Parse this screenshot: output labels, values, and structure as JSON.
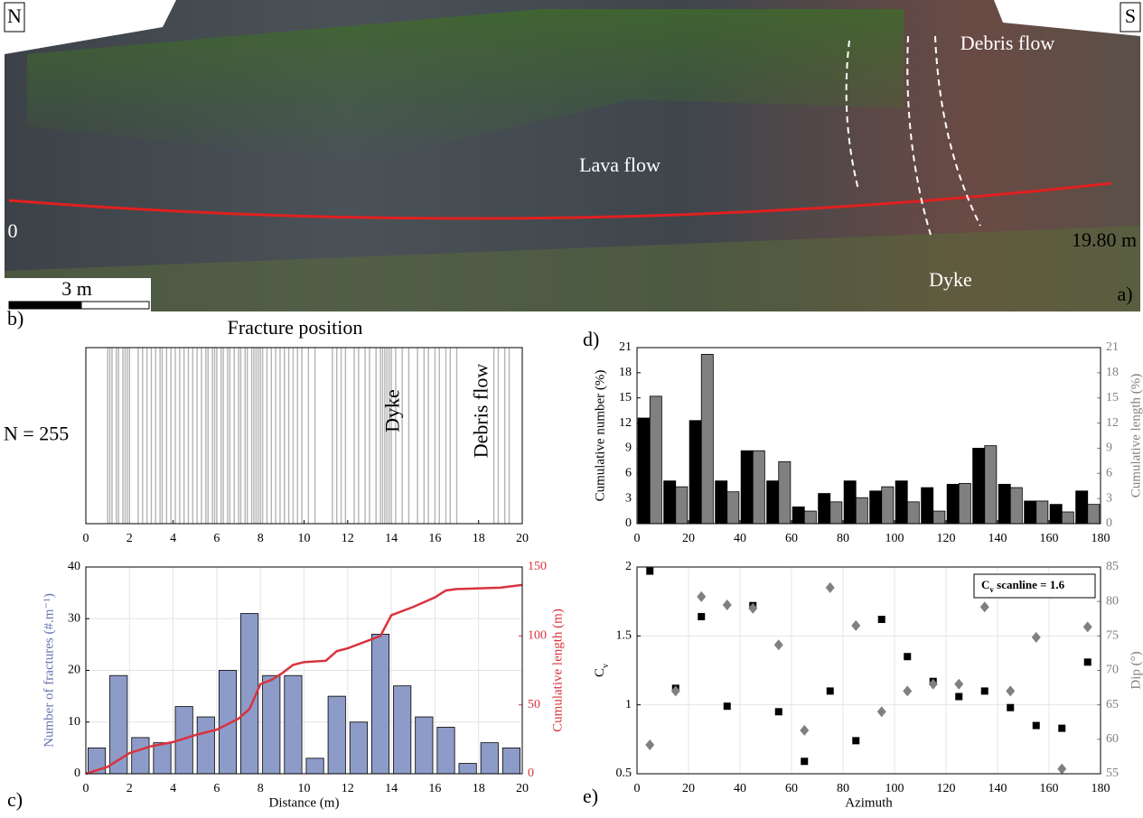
{
  "photo": {
    "north": "N",
    "south": "S",
    "debris_label": "Debris flow",
    "lava_label": "Lava flow",
    "start_label": "0",
    "end_label": "19.80 m",
    "dyke_label": "Dyke",
    "scale_label": "3 m",
    "panel": "a)"
  },
  "chart_data": [
    {
      "type": "rug",
      "panel": "b)",
      "title": "Fracture position",
      "annotation": "N = 255",
      "labels": [
        "Dyke",
        "Debris flow"
      ],
      "color": "#b4b4b4",
      "x": [
        1.0,
        1.1,
        1.2,
        1.4,
        1.5,
        1.7,
        1.8,
        1.9,
        2.0,
        2.4,
        2.6,
        2.8,
        3.0,
        3.2,
        3.4,
        3.5,
        3.7,
        3.9,
        4.1,
        4.3,
        4.5,
        4.7,
        4.9,
        5.1,
        5.3,
        5.5,
        5.6,
        5.8,
        5.9,
        6.0,
        6.2,
        6.3,
        6.5,
        6.6,
        6.8,
        7.0,
        7.1,
        7.3,
        7.4,
        7.6,
        7.7,
        7.8,
        7.9,
        8.0,
        8.1,
        8.3,
        8.5,
        8.7,
        8.9,
        9.1,
        9.3,
        9.5,
        9.7,
        9.9,
        10.2,
        10.5,
        11.3,
        11.5,
        11.7,
        11.9,
        12.3,
        12.5,
        12.8,
        13.0,
        13.3,
        13.5,
        13.6,
        13.7,
        13.8,
        13.9,
        14.0,
        14.2,
        14.5,
        14.8,
        15.2,
        15.5,
        15.7,
        16.0,
        16.2,
        16.5,
        16.7,
        17.0,
        18.7,
        18.9,
        19.2,
        19.4
      ],
      "xlim": [
        0,
        20
      ],
      "xticks": [
        0,
        2,
        4,
        6,
        8,
        10,
        12,
        14,
        16,
        18,
        20
      ]
    },
    {
      "type": "bar",
      "panel": "c)",
      "xlabel": "Distance (m)",
      "ylabel": "Number of fractures (#.m⁻¹)",
      "y2label": "Cumulative length (m)",
      "ylabel_color": "#6673b0",
      "y2label_color": "#d9333f",
      "grid": true,
      "x": [
        0.5,
        1.5,
        2.5,
        3.5,
        4.5,
        5.5,
        6.5,
        7.5,
        8.5,
        9.5,
        10.5,
        11.5,
        12.5,
        13.5,
        14.5,
        15.5,
        16.5,
        17.5,
        18.5,
        19.5
      ],
      "series": [
        {
          "type": "bar",
          "color": "#8d9bc8",
          "values": [
            5,
            19,
            7,
            6,
            13,
            11,
            20,
            31,
            19,
            19,
            3,
            15,
            10,
            27,
            17,
            11,
            9,
            2,
            6,
            5
          ]
        },
        {
          "type": "line",
          "axis": "y2",
          "color": "#d9333f",
          "x": [
            0,
            1,
            2,
            3,
            4,
            5,
            6,
            7,
            7.5,
            8,
            8.5,
            9,
            9.5,
            10,
            11,
            11.5,
            12,
            13,
            13.5,
            14,
            15,
            16,
            16.5,
            17,
            19,
            20
          ],
          "values": [
            0,
            5,
            15,
            20,
            23,
            28,
            32,
            40,
            47,
            65,
            68,
            73,
            79,
            81,
            82,
            89,
            91,
            97,
            100,
            115,
            121,
            128,
            133,
            134,
            135,
            137
          ]
        }
      ],
      "xlim": [
        0,
        20
      ],
      "xticks": [
        0,
        2,
        4,
        6,
        8,
        10,
        12,
        14,
        16,
        18,
        20
      ],
      "ylim": [
        0,
        40
      ],
      "yticks": [
        0,
        10,
        20,
        30,
        40
      ],
      "y2lim": [
        0,
        150
      ],
      "y2ticks": [
        0,
        50,
        100,
        150
      ]
    },
    {
      "type": "bar",
      "panel": "d)",
      "ylabel": "Cumulative number (%)",
      "y2label": "Cumulative length (%)",
      "ylabel_color": "#000000",
      "y2label_color": "#808080",
      "grid": false,
      "x": [
        5,
        15,
        25,
        35,
        45,
        55,
        65,
        75,
        85,
        95,
        105,
        115,
        125,
        135,
        145,
        155,
        165,
        175
      ],
      "series": [
        {
          "type": "bar",
          "color": "#000000",
          "values": [
            12.6,
            5.1,
            12.3,
            5.1,
            8.7,
            5.1,
            2.0,
            3.6,
            5.1,
            3.9,
            5.1,
            4.3,
            4.7,
            9.0,
            4.7,
            2.7,
            2.3,
            3.9
          ]
        },
        {
          "type": "bar",
          "axis": "y2",
          "color": "#808080",
          "values": [
            15.2,
            4.4,
            20.2,
            3.8,
            8.7,
            7.4,
            1.5,
            2.6,
            3.1,
            4.4,
            2.6,
            1.5,
            4.8,
            9.3,
            4.3,
            2.7,
            1.4,
            2.3
          ]
        }
      ],
      "xlim": [
        0,
        180
      ],
      "xticks": [
        0,
        20,
        40,
        60,
        80,
        100,
        120,
        140,
        160,
        180
      ],
      "ylim": [
        0,
        21
      ],
      "yticks": [
        0,
        3,
        6,
        9,
        12,
        15,
        18,
        21
      ],
      "y2lim": [
        0,
        21
      ],
      "y2ticks": [
        0,
        3,
        6,
        9,
        12,
        15,
        18,
        21
      ]
    },
    {
      "type": "scatter",
      "panel": "e)",
      "xlabel": "Azimuth",
      "ylabel": [
        "C",
        "v"
      ],
      "y2label": "Dip (°)",
      "ylabel_color": "#000000",
      "y2label_color": "#808080",
      "annotation": [
        "C",
        "v",
        " scanline = 1.6"
      ],
      "grid": true,
      "x": [
        5,
        15,
        25,
        35,
        45,
        55,
        65,
        75,
        85,
        95,
        105,
        115,
        125,
        135,
        145,
        155,
        165,
        175
      ],
      "series": [
        {
          "marker": "square",
          "color": "#000000",
          "values": [
            1.97,
            1.12,
            1.64,
            0.99,
            1.72,
            0.95,
            0.59,
            1.1,
            0.74,
            1.62,
            1.35,
            1.17,
            1.06,
            1.1,
            0.98,
            0.85,
            0.83,
            1.31
          ]
        },
        {
          "marker": "diamond",
          "axis": "y2",
          "color": "#808080",
          "values": [
            59.2,
            67,
            80.7,
            79.5,
            79,
            73.7,
            61.3,
            82,
            76.5,
            64,
            67,
            68,
            68,
            79.2,
            67,
            74.8,
            55.7,
            76.3
          ]
        }
      ],
      "xlim": [
        0,
        180
      ],
      "xticks": [
        0,
        20,
        40,
        60,
        80,
        100,
        120,
        140,
        160,
        180
      ],
      "ylim": [
        0.5,
        2
      ],
      "yticks": [
        0.5,
        1,
        1.5,
        2
      ],
      "y2lim": [
        55,
        85
      ],
      "y2ticks": [
        55,
        60,
        65,
        70,
        75,
        80,
        85
      ]
    }
  ]
}
